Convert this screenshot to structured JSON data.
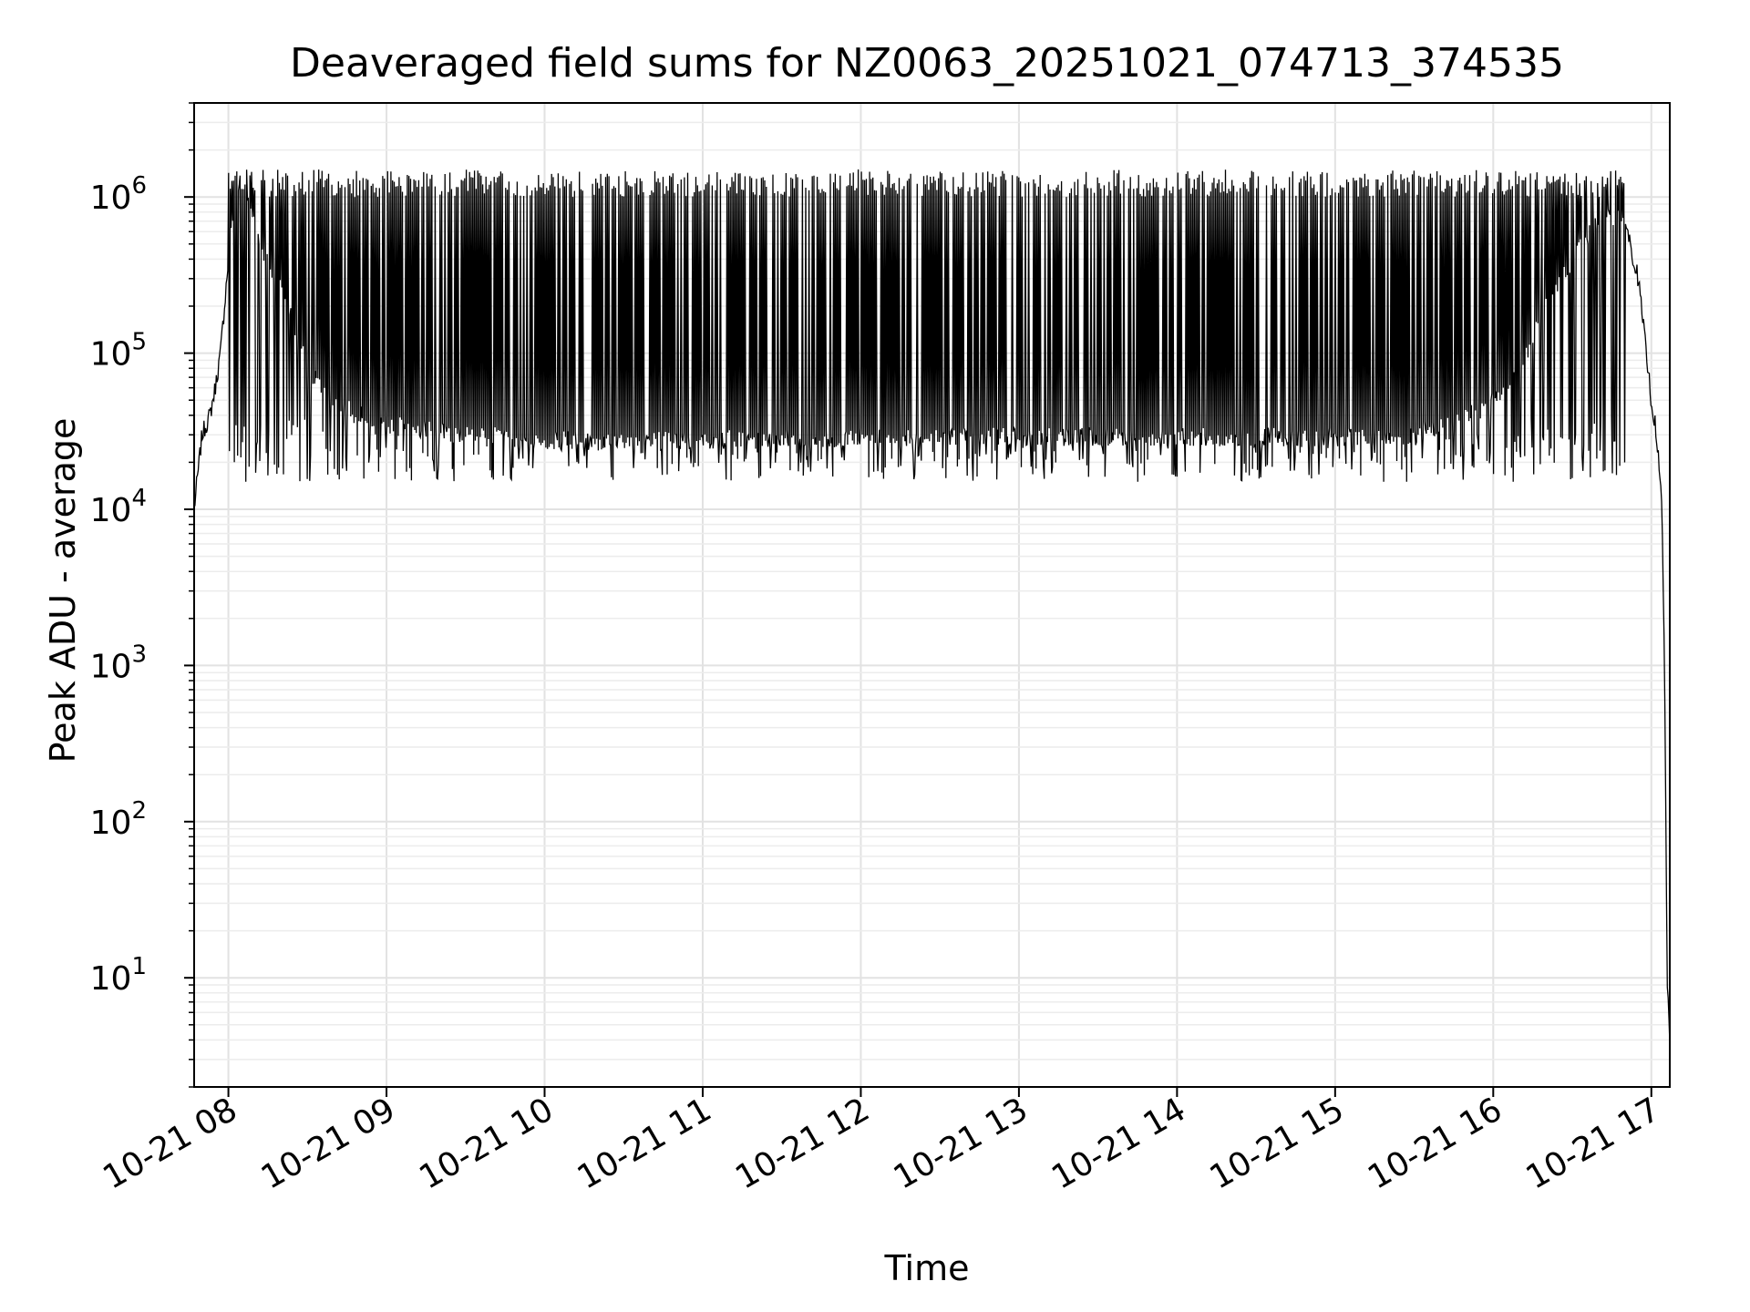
{
  "chart_data": {
    "type": "line",
    "title": "Deaveraged field sums for NZ0063_20251021_074713_374535",
    "xlabel": "Time",
    "ylabel": "Peak ADU - average",
    "y_scale": "log",
    "ylim": [
      2,
      4000000
    ],
    "xlim": [
      "2025-10-21 07:47",
      "2025-10-21 17:07"
    ],
    "x_tick_labels": [
      "10-21 08",
      "10-21 09",
      "10-21 10",
      "10-21 11",
      "10-21 12",
      "10-21 13",
      "10-21 14",
      "10-21 15",
      "10-21 16",
      "10-21 17"
    ],
    "x_ticks": [
      "2025-10-21 08:00",
      "2025-10-21 09:00",
      "2025-10-21 10:00",
      "2025-10-21 11:00",
      "2025-10-21 12:00",
      "2025-10-21 13:00",
      "2025-10-21 14:00",
      "2025-10-21 15:00",
      "2025-10-21 16:00",
      "2025-10-21 17:00"
    ],
    "y_ticks": [
      {
        "value": 10,
        "base": "10",
        "exp": "1"
      },
      {
        "value": 100,
        "base": "10",
        "exp": "2"
      },
      {
        "value": 1000,
        "base": "10",
        "exp": "3"
      },
      {
        "value": 10000,
        "base": "10",
        "exp": "4"
      },
      {
        "value": 100000,
        "base": "10",
        "exp": "5"
      },
      {
        "value": 1000000,
        "base": "10",
        "exp": "6"
      }
    ],
    "grid": true,
    "line_color": "#000000",
    "series": [
      {
        "x": [
          "2025-10-21 07:47",
          "2025-10-21 07:50",
          "2025-10-21 07:53",
          "2025-10-21 07:55",
          "2025-10-21 07:57",
          "2025-10-21 08:00",
          "2025-10-21 08:03",
          "2025-10-21 08:05",
          "2025-10-21 08:08",
          "2025-10-21 08:12",
          "2025-10-21 08:16",
          "2025-10-21 08:20",
          "2025-10-21 08:25",
          "2025-10-21 08:30",
          "2025-10-21 08:35",
          "2025-10-21 08:40",
          "2025-10-21 08:45",
          "2025-10-21 08:50",
          "2025-10-21 08:55",
          "2025-10-21 09:00",
          "2025-10-21 09:30",
          "2025-10-21 10:00",
          "2025-10-21 10:30",
          "2025-10-21 11:00",
          "2025-10-21 11:30",
          "2025-10-21 12:00",
          "2025-10-21 12:30",
          "2025-10-21 13:00",
          "2025-10-21 13:30",
          "2025-10-21 14:00",
          "2025-10-21 14:30",
          "2025-10-21 15:00",
          "2025-10-21 15:30",
          "2025-10-21 15:50",
          "2025-10-21 16:00",
          "2025-10-21 16:10",
          "2025-10-21 16:20",
          "2025-10-21 16:30",
          "2025-10-21 16:40",
          "2025-10-21 16:45",
          "2025-10-21 16:50",
          "2025-10-21 16:55",
          "2025-10-21 17:00",
          "2025-10-21 17:02",
          "2025-10-21 17:04",
          "2025-10-21 17:05",
          "2025-10-21 17:06",
          "2025-10-21 17:07"
        ],
        "values": [
          10000,
          30000,
          40000,
          60000,
          100000,
          400000,
          1200000,
          1400000,
          900000,
          500000,
          350000,
          250000,
          150000,
          80000,
          60000,
          50000,
          45000,
          40000,
          38000,
          35000,
          30000,
          28000,
          27000,
          28000,
          28000,
          29000,
          29000,
          29000,
          29000,
          29000,
          29000,
          29000,
          30000,
          40000,
          50000,
          80000,
          200000,
          400000,
          700000,
          750000,
          700000,
          300000,
          50000,
          30000,
          10000,
          1000,
          10,
          4
        ],
        "spikes": {
          "start": "2025-10-21 08:00",
          "end": "2025-10-21 16:50",
          "peak_values": [
            1500000,
            1000000
          ],
          "trough_values": [
            15000,
            40000
          ],
          "description": "dense oscillation between ~2e4 troughs and ~1e6 peaks"
        }
      }
    ]
  }
}
